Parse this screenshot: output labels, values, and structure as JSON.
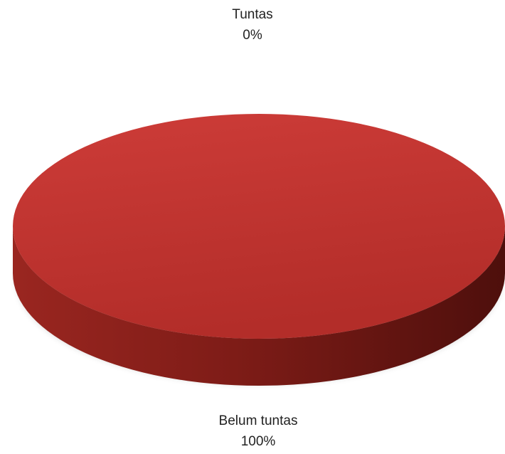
{
  "chart_data": {
    "type": "pie",
    "style": "3d",
    "categories": [
      "Tuntas",
      "Belum tuntas"
    ],
    "values": [
      0,
      100
    ],
    "unit": "%",
    "colors": [
      "#c0392b",
      "#c0392b"
    ],
    "data_labels": [
      {
        "category": "Tuntas",
        "value": "0%"
      },
      {
        "category": "Belum tuntas",
        "value": "100%"
      }
    ]
  }
}
